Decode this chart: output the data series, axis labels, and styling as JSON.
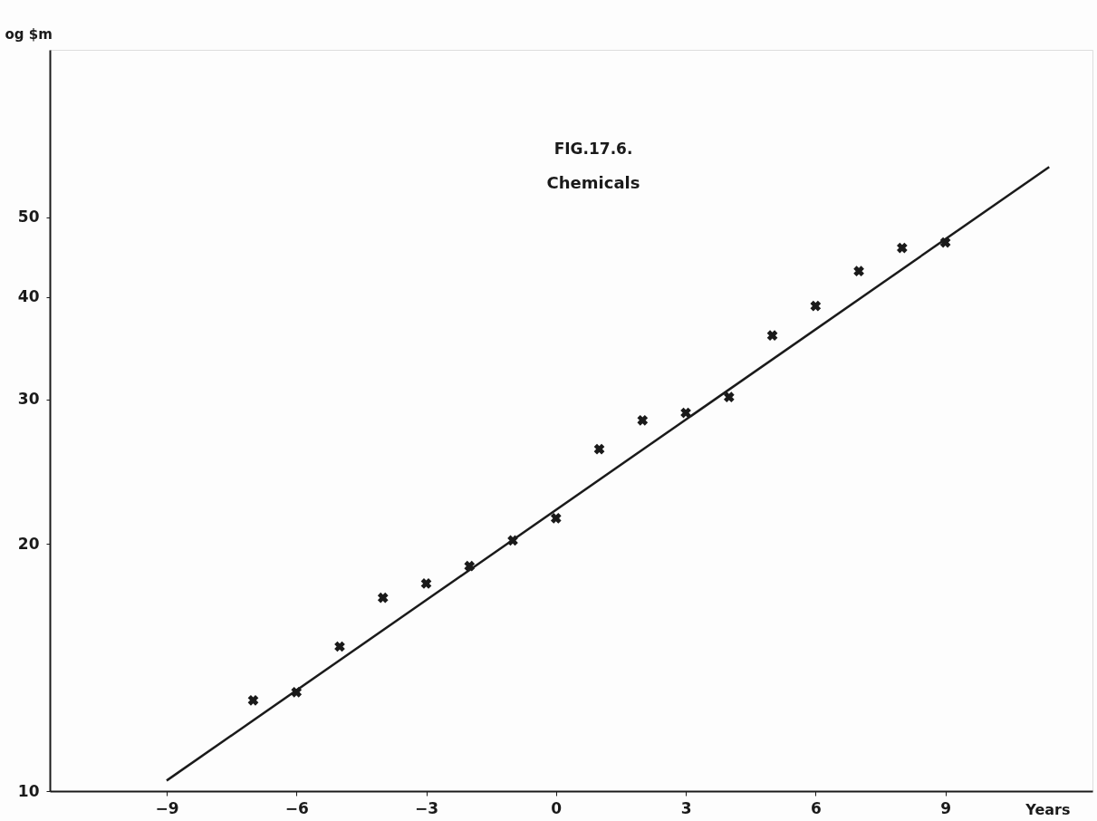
{
  "chart_data": {
    "type": "scatter",
    "title": "FIG.17.6.",
    "subtitle": "Chemicals",
    "xlabel": "Years",
    "ylabel": "og $m",
    "log": "y",
    "grid": false,
    "xlim": [
      -11.7,
      12.4
    ],
    "ylim": [
      10,
      80
    ],
    "xticks": [
      -9,
      -6,
      -3,
      0,
      3,
      6,
      9
    ],
    "yticks": [
      10,
      20,
      30,
      40,
      50
    ],
    "series": [
      {
        "marker": "cross",
        "color": "#1a1a1a",
        "x": [
          -7,
          -6,
          -5,
          -4,
          -3,
          -2,
          -1,
          0,
          1,
          2,
          3,
          4,
          5,
          6,
          7,
          8,
          9
        ],
        "values": [
          12.9,
          13.2,
          15.0,
          17.2,
          17.9,
          18.8,
          20.2,
          21.5,
          26.1,
          28.3,
          28.9,
          30.2,
          35.9,
          39.0,
          43.0,
          45.9,
          46.6
        ]
      },
      {
        "type": "line",
        "color": "#1a1a1a",
        "line_style": "solid",
        "x": [
          -9,
          11.4
        ],
        "values": [
          10.3,
          57.6
        ]
      }
    ]
  }
}
